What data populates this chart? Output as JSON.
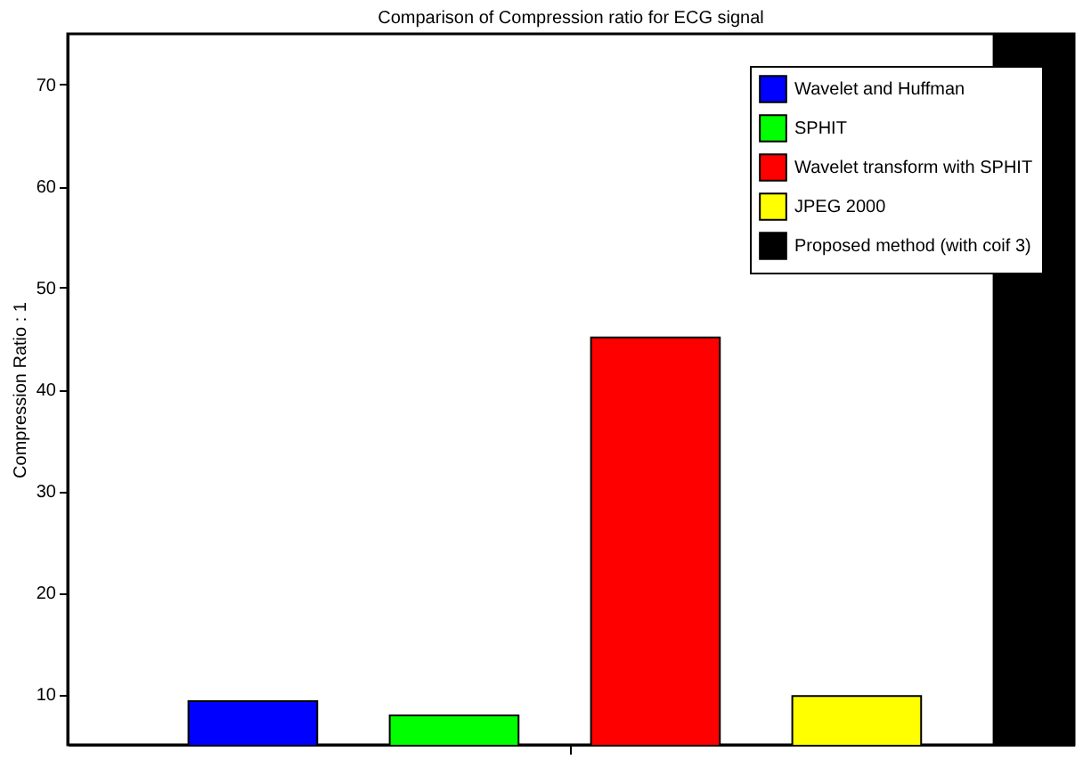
{
  "chart_data": {
    "type": "bar",
    "title": "Comparison of Compression ratio for ECG signal",
    "ylabel": "Compression Ratio : 1",
    "categories": [
      null
    ],
    "series": [
      {
        "name": "Wavelet and Huffman",
        "color": "#0000ff",
        "values": [
          9.3
        ]
      },
      {
        "name": "SPHIT",
        "color": "#00ff00",
        "values": [
          7.9
        ]
      },
      {
        "name": "Wavelet transform with SPHIT",
        "color": "#ff0000",
        "values": [
          45.1
        ]
      },
      {
        "name": "JPEG 2000",
        "color": "#ffff00",
        "values": [
          9.8
        ]
      },
      {
        "name": "Proposed method (with coif 3)",
        "color": "#000000",
        "values": [
          75
        ]
      }
    ],
    "ylim": [
      5,
      75
    ],
    "yticks": [
      10,
      20,
      30,
      40,
      50,
      60,
      70
    ],
    "grid": false,
    "legend": "top right"
  }
}
